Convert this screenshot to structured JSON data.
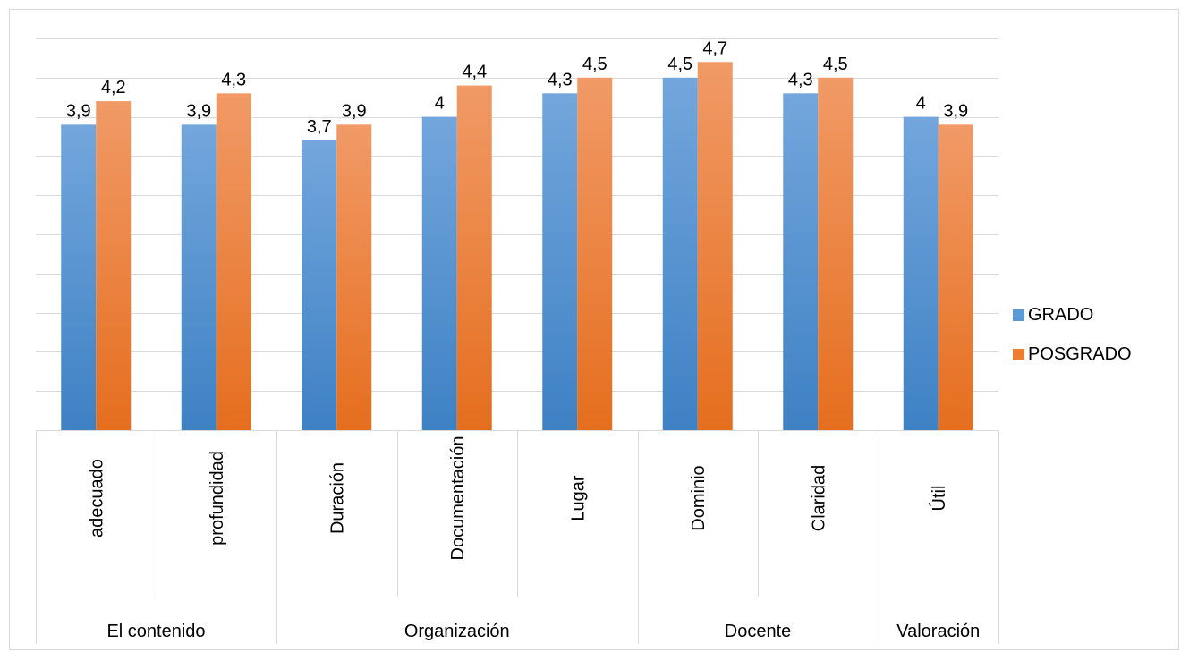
{
  "chart_data": {
    "type": "bar",
    "groups": [
      {
        "label": "El contenido",
        "categories": [
          "adecuado",
          "profundidad"
        ]
      },
      {
        "label": "Organización",
        "categories": [
          "Duración",
          "Documentación",
          "Lugar"
        ]
      },
      {
        "label": "Docente",
        "categories": [
          "Dominio",
          "Claridad"
        ]
      },
      {
        "label": "Valoración",
        "categories": [
          "Útil"
        ]
      }
    ],
    "categories": [
      "adecuado",
      "profundidad",
      "Duración",
      "Documentación",
      "Lugar",
      "Dominio",
      "Claridad",
      "Útil"
    ],
    "series": [
      {
        "name": "GRADO",
        "color": "#5b9bd5",
        "values": [
          3.9,
          3.9,
          3.7,
          4,
          4.3,
          4.5,
          4.3,
          4
        ],
        "labels": [
          "3,9",
          "3,9",
          "3,7",
          "4",
          "4,3",
          "4,5",
          "4,3",
          "4"
        ]
      },
      {
        "name": "POSGRADO",
        "color": "#ed7d31",
        "values": [
          4.2,
          4.3,
          3.9,
          4.4,
          4.5,
          4.7,
          4.5,
          3.9
        ],
        "labels": [
          "4,2",
          "4,3",
          "3,9",
          "4,4",
          "4,5",
          "4,7",
          "4,5",
          "3,9"
        ]
      }
    ],
    "ylim": [
      0,
      5
    ],
    "grid": true,
    "legend": "right"
  }
}
